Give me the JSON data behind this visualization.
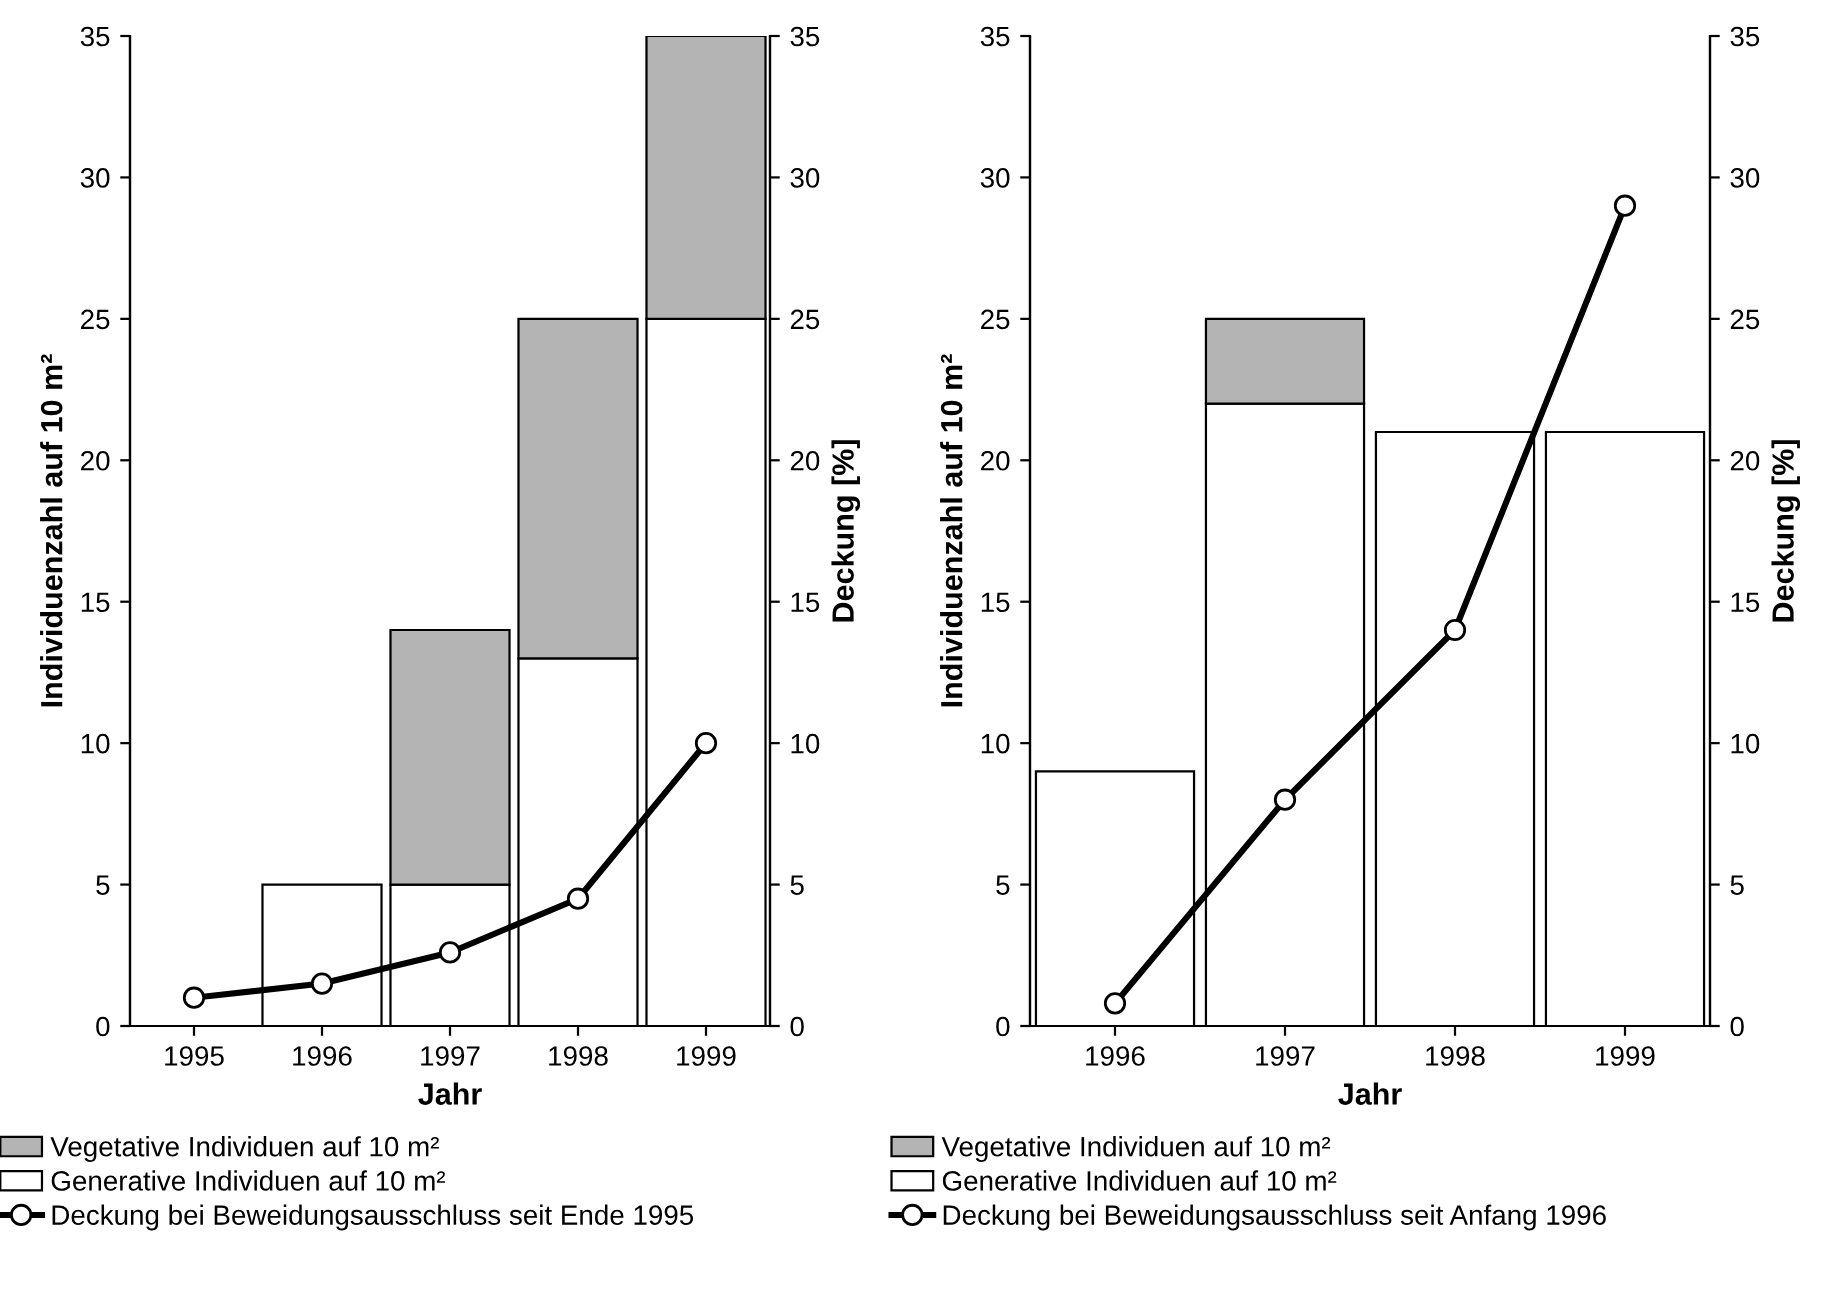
{
  "chart_data": [
    {
      "type": "bar",
      "stacked": true,
      "categories": [
        "1995",
        "1996",
        "1997",
        "1998",
        "1999"
      ],
      "xlabel": "Jahr",
      "ylabel": "Individuenzahl auf 10 m²",
      "y2label": "Deckung [%]",
      "ylim": [
        0,
        35
      ],
      "yticks": [
        0,
        5,
        10,
        15,
        20,
        25,
        30,
        35
      ],
      "y2lim": [
        0,
        35
      ],
      "y2ticks": [
        0,
        5,
        10,
        15,
        20,
        25,
        30,
        35
      ],
      "grid": false,
      "legend": "bottom",
      "series": [
        {
          "name": "Generative Individuen auf 10 m²",
          "color": "#ffffff",
          "values": [
            null,
            5,
            5,
            13,
            25
          ]
        },
        {
          "name": "Vegetative Individuen auf 10 m²",
          "color": "#b4b4b4",
          "values": [
            null,
            null,
            9,
            12,
            10
          ]
        },
        {
          "name": "Deckung bei Beweidungsausschluss seit Ende 1995",
          "type": "line",
          "axis": "y2",
          "color": "#000000",
          "marker": "circle",
          "line_style": "solid",
          "values": [
            1,
            1.5,
            2.6,
            4.5,
            10
          ]
        }
      ]
    },
    {
      "type": "bar",
      "stacked": true,
      "categories": [
        "1996",
        "1997",
        "1998",
        "1999"
      ],
      "xlabel": "Jahr",
      "ylabel": "Individuenzahl auf 10 m²",
      "y2label": "Deckung [%]",
      "ylim": [
        0,
        35
      ],
      "yticks": [
        0,
        5,
        10,
        15,
        20,
        25,
        30,
        35
      ],
      "y2lim": [
        0,
        35
      ],
      "y2ticks": [
        0,
        5,
        10,
        15,
        20,
        25,
        30,
        35
      ],
      "grid": false,
      "legend": "bottom",
      "series": [
        {
          "name": "Generative Individuen auf 10 m²",
          "color": "#ffffff",
          "values": [
            9,
            22,
            21,
            21
          ]
        },
        {
          "name": "Vegetative Individuen auf 10 m²",
          "color": "#b4b4b4",
          "values": [
            null,
            3,
            null,
            null
          ]
        },
        {
          "name": "Deckung bei Beweidungsausschluss seit Anfang 1996",
          "type": "line",
          "axis": "y2",
          "color": "#000000",
          "marker": "circle",
          "line_style": "solid",
          "values": [
            0.8,
            8,
            14,
            29
          ]
        }
      ]
    }
  ]
}
